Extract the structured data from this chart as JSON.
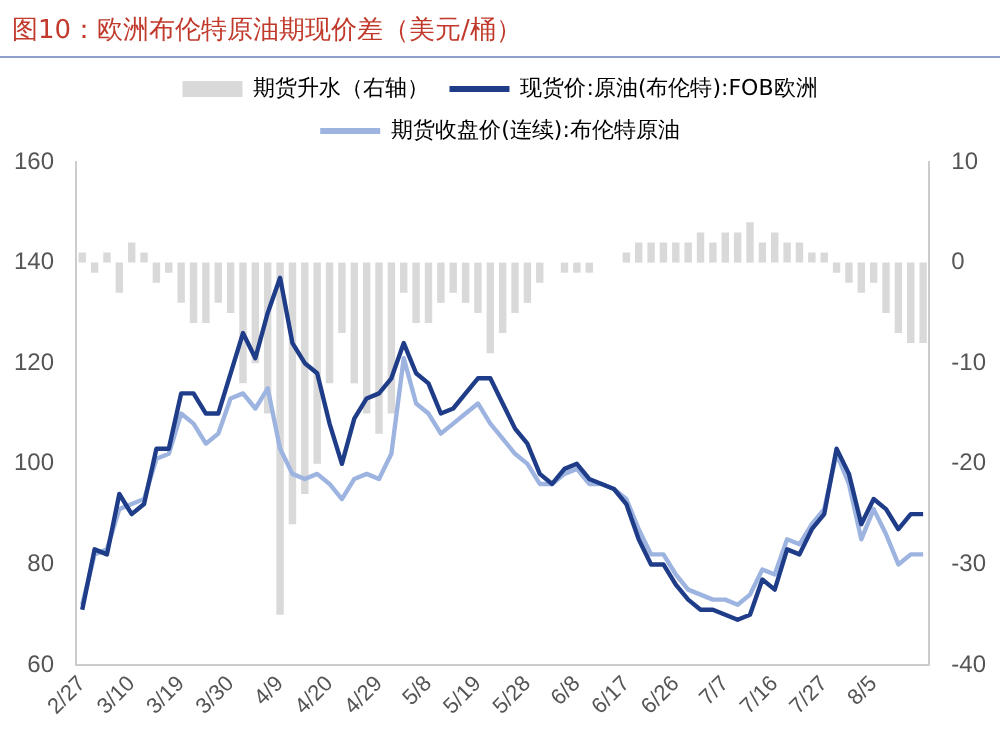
{
  "chart_data": {
    "type": "line",
    "title": "图10：欧洲布伦特原油期现价差（美元/桶）",
    "categories": [
      "2/27",
      null,
      null,
      null,
      "3/10",
      null,
      null,
      null,
      "3/19",
      null,
      null,
      null,
      "3/30",
      null,
      null,
      null,
      "4/9",
      null,
      null,
      null,
      "4/20",
      null,
      null,
      null,
      "4/29",
      null,
      null,
      null,
      "5/8",
      null,
      null,
      null,
      "5/19",
      null,
      null,
      null,
      "5/28",
      null,
      null,
      null,
      "6/8",
      null,
      null,
      null,
      "6/17",
      null,
      null,
      null,
      "6/26",
      null,
      null,
      null,
      "7/7",
      null,
      null,
      null,
      "7/16",
      null,
      null,
      null,
      "7/27",
      null,
      null,
      null,
      "8/5",
      null,
      null,
      null,
      null
    ],
    "series": [
      {
        "name": "期货升水（右轴）",
        "type": "bar",
        "axis": "y2",
        "color": "#d9d9d9",
        "values": [
          1,
          -1,
          1,
          -3,
          2,
          1,
          -2,
          -1,
          -4,
          -6,
          -6,
          -4,
          -5,
          -12,
          -10,
          -15,
          -35,
          -26,
          -23,
          -20,
          -12,
          -7,
          -12,
          -15,
          -17,
          -15,
          -3,
          -6,
          -6,
          -4,
          -3,
          -4,
          -5,
          -9,
          -7,
          -5,
          -4,
          -2,
          0,
          -1,
          -1,
          -1,
          0,
          0,
          1,
          2,
          2,
          2,
          2,
          2,
          3,
          2,
          3,
          3,
          4,
          2,
          3,
          2,
          2,
          1,
          1,
          -1,
          -2,
          -3,
          -2,
          -5,
          -7,
          -8,
          -8
        ]
      },
      {
        "name": "现货价:原油(布伦特):FOB欧洲",
        "color": "#1f3c88",
        "values": [
          71,
          83,
          82,
          94,
          90,
          92,
          103,
          103,
          114,
          114,
          110,
          110,
          118,
          126,
          121,
          130,
          137,
          124,
          120,
          118,
          108,
          100,
          109,
          113,
          114,
          117,
          124,
          118,
          116,
          110,
          111,
          114,
          117,
          117,
          112,
          107,
          104,
          98,
          96,
          99,
          100,
          97,
          96,
          95,
          92,
          85,
          80,
          80,
          76,
          73,
          71,
          71,
          70,
          69,
          70,
          77,
          75,
          83,
          82,
          87,
          90,
          103,
          98,
          88,
          93,
          91,
          87,
          90,
          90
        ]
      },
      {
        "name": "期货收盘价(连续):布伦特原油",
        "color": "#9db4e0",
        "values": [
          72,
          82,
          83,
          91,
          92,
          93,
          101,
          102,
          110,
          108,
          104,
          106,
          113,
          114,
          111,
          115,
          103,
          98,
          97,
          98,
          96,
          93,
          97,
          98,
          97,
          102,
          121,
          112,
          110,
          106,
          108,
          110,
          112,
          108,
          105,
          102,
          100,
          96,
          96,
          98,
          99,
          96,
          96,
          95,
          93,
          87,
          82,
          82,
          78,
          75,
          74,
          73,
          73,
          72,
          74,
          79,
          78,
          85,
          84,
          88,
          91,
          102,
          96,
          85,
          91,
          86,
          80,
          82,
          82
        ]
      }
    ],
    "ylim": [
      60,
      160
    ],
    "yticks": [
      60,
      80,
      100,
      120,
      140,
      160
    ],
    "y2lim": [
      -40,
      10
    ],
    "y2ticks": [
      -40,
      -30,
      -20,
      -10,
      0,
      10
    ],
    "grid": false,
    "legend": "top",
    "marker": "none",
    "line_style": "solid"
  }
}
